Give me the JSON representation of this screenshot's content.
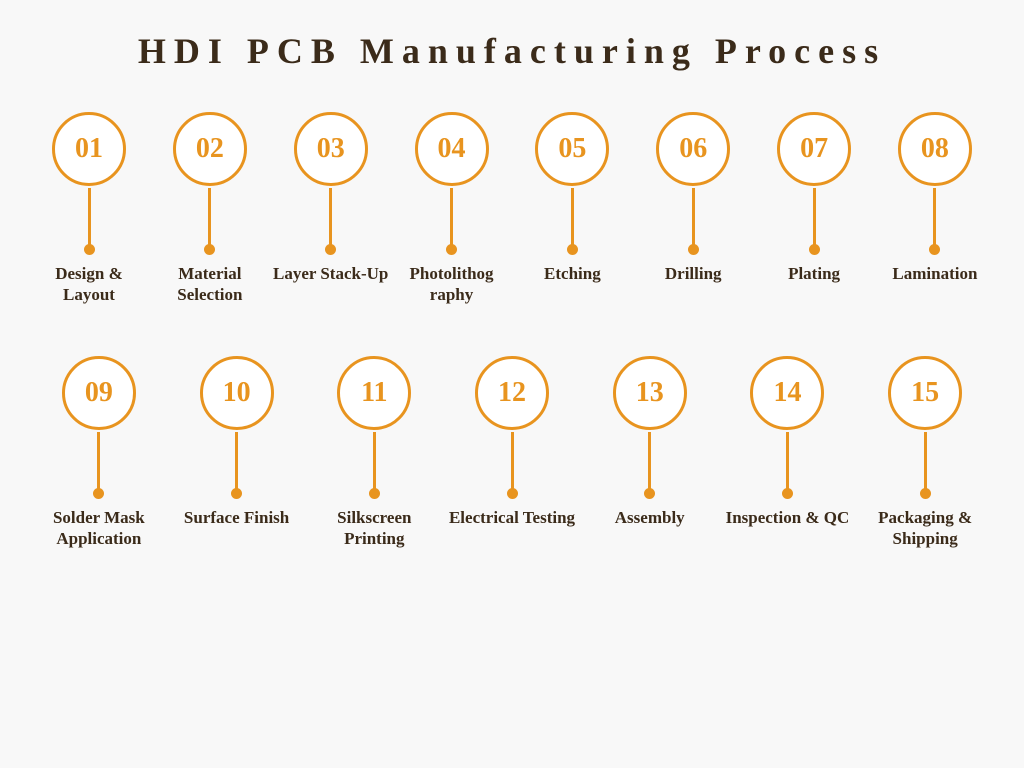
{
  "title": "HDI PCB Manufacturing Process",
  "colors": {
    "accent": "#e8941f",
    "title": "#3b2b1a",
    "label": "#3b2b1a",
    "background": "#f8f8f8",
    "circle_bg": "#ffffff"
  },
  "typography": {
    "title_fontsize": 36,
    "title_letter_spacing": 8,
    "number_fontsize": 28,
    "label_fontsize": 17
  },
  "layout": {
    "circle_diameter": 74,
    "circle_border_width": 3,
    "stem_height": 58,
    "stem_width": 3,
    "dot_diameter": 11,
    "row_gap": 50,
    "rows": [
      8,
      7
    ]
  },
  "steps": [
    {
      "num": "01",
      "label": "Design & Layout"
    },
    {
      "num": "02",
      "label": "Material Selection"
    },
    {
      "num": "03",
      "label": "Layer Stack-Up"
    },
    {
      "num": "04",
      "label": "Photolithog raphy"
    },
    {
      "num": "05",
      "label": "Etching"
    },
    {
      "num": "06",
      "label": "Drilling"
    },
    {
      "num": "07",
      "label": "Plating"
    },
    {
      "num": "08",
      "label": "Lamination"
    },
    {
      "num": "09",
      "label": "Solder Mask Application"
    },
    {
      "num": "10",
      "label": "Surface Finish"
    },
    {
      "num": "11",
      "label": "Silkscreen Printing"
    },
    {
      "num": "12",
      "label": "Electrical Testing"
    },
    {
      "num": "13",
      "label": "Assembly"
    },
    {
      "num": "14",
      "label": "Inspection & QC"
    },
    {
      "num": "15",
      "label": "Packaging & Shipping"
    }
  ]
}
